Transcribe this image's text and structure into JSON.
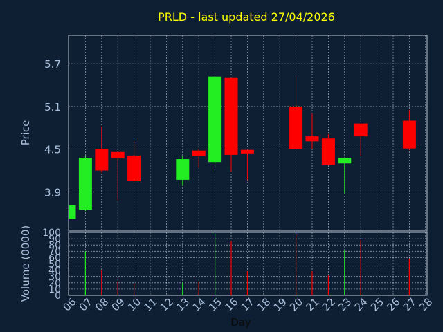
{
  "chart_data": {
    "type": "candlestick",
    "title": "PRLD - last updated 27/04/2026",
    "price_axis": {
      "label": "Price",
      "ticks": [
        3.9,
        4.5,
        5.1,
        5.7
      ],
      "range": [
        3.35,
        6.1
      ]
    },
    "volume_axis": {
      "label": "Volume (0000)",
      "ticks": [
        0,
        10,
        20,
        30,
        40,
        50,
        60,
        70,
        80,
        90,
        100
      ],
      "range": [
        0,
        100
      ]
    },
    "x_axis": {
      "label": "Day",
      "ticks": [
        "06",
        "07",
        "08",
        "09",
        "10",
        "11",
        "12",
        "13",
        "14",
        "15",
        "16",
        "17",
        "18",
        "19",
        "20",
        "21",
        "22",
        "23",
        "24",
        "25",
        "26",
        "27",
        "28"
      ]
    },
    "candles": [
      {
        "day": "06",
        "open": 3.52,
        "close": 3.71,
        "high": 3.71,
        "low": 3.52,
        "volume": 0
      },
      {
        "day": "07",
        "open": 3.65,
        "close": 4.38,
        "high": 4.4,
        "low": 3.63,
        "volume": 70
      },
      {
        "day": "08",
        "open": 4.5,
        "close": 4.2,
        "high": 4.82,
        "low": 4.17,
        "volume": 40
      },
      {
        "day": "09",
        "open": 4.46,
        "close": 4.37,
        "high": 4.46,
        "low": 3.79,
        "volume": 22
      },
      {
        "day": "10",
        "open": 4.41,
        "close": 4.05,
        "high": 4.62,
        "low": 4.04,
        "volume": 20
      },
      {
        "day": "13",
        "open": 4.07,
        "close": 4.36,
        "high": 4.4,
        "low": 3.99,
        "volume": 20
      },
      {
        "day": "14",
        "open": 4.48,
        "close": 4.4,
        "high": 4.5,
        "low": 4.24,
        "volume": 22
      },
      {
        "day": "15",
        "open": 4.32,
        "close": 5.52,
        "high": 5.52,
        "low": 4.23,
        "volume": 98
      },
      {
        "day": "16",
        "open": 5.5,
        "close": 4.42,
        "high": 5.5,
        "low": 4.19,
        "volume": 86
      },
      {
        "day": "17",
        "open": 4.49,
        "close": 4.44,
        "high": 4.49,
        "low": 4.07,
        "volume": 38
      },
      {
        "day": "20",
        "open": 5.1,
        "close": 4.5,
        "high": 5.51,
        "low": 4.5,
        "volume": 97
      },
      {
        "day": "21",
        "open": 4.68,
        "close": 4.61,
        "high": 5.0,
        "low": 4.5,
        "volume": 38
      },
      {
        "day": "22",
        "open": 4.65,
        "close": 4.28,
        "high": 4.71,
        "low": 4.27,
        "volume": 32
      },
      {
        "day": "23",
        "open": 4.3,
        "close": 4.38,
        "high": 4.38,
        "low": 3.88,
        "volume": 72
      },
      {
        "day": "24",
        "open": 4.86,
        "close": 4.68,
        "high": 4.86,
        "low": 4.41,
        "volume": 88
      },
      {
        "day": "27",
        "open": 4.9,
        "close": 4.51,
        "high": 5.05,
        "low": 4.49,
        "volume": 58
      }
    ],
    "colors": {
      "up": "#22ee22",
      "down": "#ff0000",
      "grid": "#b8c4d2",
      "axis_text": "#a9c0dc",
      "title": "#ffff00",
      "background": "#0f1f33"
    }
  }
}
